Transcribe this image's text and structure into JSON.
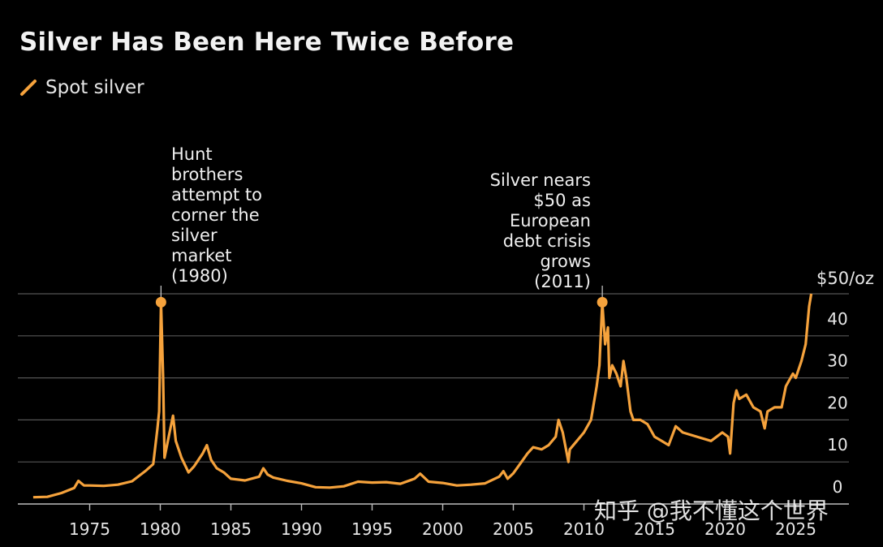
{
  "title": "Silver Has Been Here Twice Before",
  "legend": {
    "label": "Spot silver",
    "color": "#f5a23c"
  },
  "watermark": "知乎 @我不懂这个世界",
  "annotations": {
    "hunt": "Hunt\nbrothers\nattempt to\ncorner the\nsilver\nmarket\n(1980)",
    "euro": "Silver nears\n$50 as\nEuropean\ndebt crisis\ngrows\n(2011)"
  },
  "chart_data": {
    "type": "line",
    "title": "Silver Has Been Here Twice Before",
    "xlim": [
      1970.5,
      2026.8
    ],
    "ylim": [
      0,
      50
    ],
    "x_ticks": [
      "1975",
      "1980",
      "1985",
      "1990",
      "1995",
      "2000",
      "2005",
      "2010",
      "2015",
      "2020",
      "2025"
    ],
    "y_ticks": [
      "0",
      "10",
      "20",
      "30",
      "40",
      "$50/oz"
    ],
    "grid": true,
    "legend_position": "top-left",
    "series": [
      {
        "name": "Spot silver",
        "color": "#f5a23c",
        "x": [
          1971.0,
          1972.0,
          1973.0,
          1973.9,
          1974.2,
          1974.6,
          1975.0,
          1976.0,
          1977.0,
          1978.0,
          1979.0,
          1979.5,
          1979.8,
          1979.92,
          1980.05,
          1980.2,
          1980.3,
          1980.6,
          1980.9,
          1981.1,
          1981.5,
          1982.0,
          1982.4,
          1983.0,
          1983.3,
          1983.6,
          1984.0,
          1984.5,
          1985.0,
          1986.0,
          1987.0,
          1987.3,
          1987.6,
          1988.0,
          1989.0,
          1990.0,
          1991.0,
          1992.0,
          1993.0,
          1994.0,
          1995.0,
          1996.0,
          1997.0,
          1998.0,
          1998.4,
          1999.0,
          2000.0,
          2001.0,
          2002.0,
          2003.0,
          2004.0,
          2004.3,
          2004.6,
          2005.0,
          2006.0,
          2006.4,
          2007.0,
          2007.5,
          2008.0,
          2008.2,
          2008.5,
          2008.9,
          2009.0,
          2009.5,
          2010.0,
          2010.5,
          2010.9,
          2011.1,
          2011.3,
          2011.5,
          2011.7,
          2011.8,
          2012.0,
          2012.3,
          2012.6,
          2012.8,
          2013.0,
          2013.3,
          2013.5,
          2014.0,
          2014.5,
          2015.0,
          2015.5,
          2016.0,
          2016.5,
          2017.0,
          2018.0,
          2019.0,
          2019.8,
          2020.2,
          2020.35,
          2020.6,
          2020.8,
          2021.0,
          2021.5,
          2022.0,
          2022.5,
          2022.8,
          2023.0,
          2023.5,
          2024.0,
          2024.3,
          2024.8,
          2025.0,
          2025.4,
          2025.7,
          2025.95,
          2026.1
        ],
        "y": [
          1.6,
          1.7,
          2.6,
          3.8,
          5.5,
          4.4,
          4.4,
          4.3,
          4.6,
          5.4,
          8.0,
          9.5,
          18.0,
          22.0,
          48.0,
          30.0,
          11.0,
          16.0,
          21.0,
          15.0,
          11.0,
          7.5,
          9.0,
          12.0,
          14.0,
          10.5,
          8.5,
          7.5,
          6.0,
          5.6,
          6.5,
          8.5,
          7.0,
          6.3,
          5.5,
          4.9,
          4.0,
          3.9,
          4.2,
          5.3,
          5.1,
          5.2,
          4.8,
          6.0,
          7.2,
          5.3,
          5.0,
          4.4,
          4.6,
          4.9,
          6.5,
          7.8,
          6.0,
          7.3,
          12.0,
          13.5,
          13.0,
          14.0,
          16.0,
          20.0,
          17.0,
          10.0,
          13.0,
          15.0,
          17.0,
          20.0,
          28.0,
          33.0,
          48.0,
          38.0,
          42.0,
          30.0,
          33.0,
          31.0,
          28.0,
          34.0,
          30.0,
          22.0,
          20.0,
          20.0,
          19.0,
          16.0,
          15.0,
          14.0,
          18.5,
          17.0,
          16.0,
          15.0,
          17.0,
          16.0,
          12.0,
          24.0,
          27.0,
          25.0,
          26.0,
          23.0,
          22.0,
          18.0,
          22.0,
          23.0,
          23.0,
          28.0,
          31.0,
          30.0,
          34.0,
          38.0,
          47.0,
          50.0
        ]
      }
    ],
    "markers": [
      {
        "x": 1980.05,
        "y": 48.0
      },
      {
        "x": 2011.3,
        "y": 48.0
      }
    ]
  }
}
